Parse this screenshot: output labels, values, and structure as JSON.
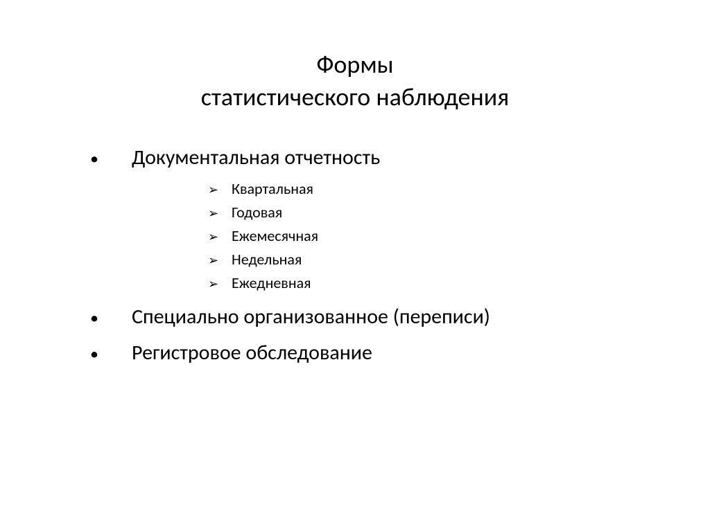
{
  "slide": {
    "title_line1": "Формы",
    "title_line2": "статистического наблюдения",
    "bullets": [
      {
        "text": "Документальная отчетность",
        "sub_items": [
          "Квартальная",
          "Годовая",
          "Ежемесячная",
          "Недельная",
          "Ежедневная"
        ]
      },
      {
        "text": "Специально организованное (переписи)",
        "sub_items": []
      },
      {
        "text": "Регистровое обследование",
        "sub_items": []
      }
    ],
    "colors": {
      "background": "#ffffff",
      "text": "#000000"
    },
    "typography": {
      "title_fontsize": 36,
      "bullet_fontsize": 30,
      "sub_fontsize": 22,
      "font_family": "Calibri"
    },
    "markers": {
      "bullet": "•",
      "sub": "➢"
    }
  }
}
